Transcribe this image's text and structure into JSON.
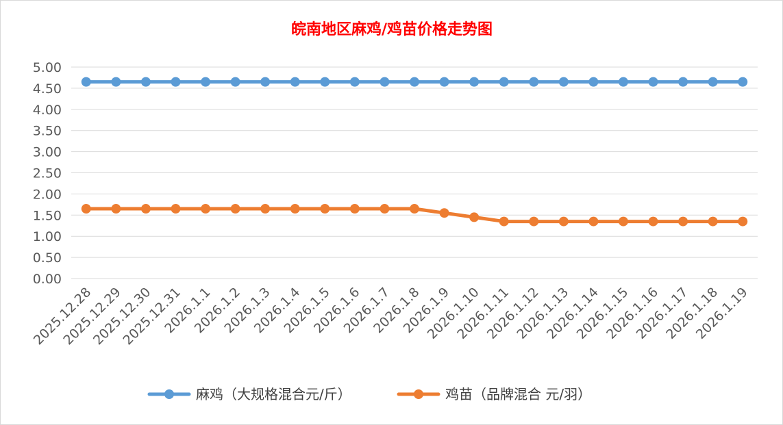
{
  "chart_data": {
    "type": "line",
    "title": "皖南地区麻鸡/鸡苗价格走势图",
    "categories": [
      "2025.12.28",
      "2025.12.29",
      "2025.12.30",
      "2025.12.31",
      "2026.1.1",
      "2026.1.2",
      "2026.1.3",
      "2026.1.4",
      "2026.1.5",
      "2026.1.6",
      "2026.1.7",
      "2026.1.8",
      "2026.1.9",
      "2026.1.10",
      "2026.1.11",
      "2026.1.12",
      "2026.1.13",
      "2026.1.14",
      "2026.1.15",
      "2026.1.16",
      "2026.1.17",
      "2026.1.18",
      "2026.1.19"
    ],
    "series": [
      {
        "name": "麻鸡（大规格混合元/斤）",
        "color": "#5b9bd5",
        "values": [
          4.65,
          4.65,
          4.65,
          4.65,
          4.65,
          4.65,
          4.65,
          4.65,
          4.65,
          4.65,
          4.65,
          4.65,
          4.65,
          4.65,
          4.65,
          4.65,
          4.65,
          4.65,
          4.65,
          4.65,
          4.65,
          4.65,
          4.65
        ]
      },
      {
        "name": "鸡苗（品牌混合 元/羽）",
        "color": "#ed7d31",
        "values": [
          1.65,
          1.65,
          1.65,
          1.65,
          1.65,
          1.65,
          1.65,
          1.65,
          1.65,
          1.65,
          1.65,
          1.65,
          1.55,
          1.45,
          1.35,
          1.35,
          1.35,
          1.35,
          1.35,
          1.35,
          1.35,
          1.35,
          1.35
        ]
      }
    ],
    "ylim": [
      0,
      5
    ],
    "ytick_step": 0.5,
    "y_tick_labels": [
      "0.00",
      "0.50",
      "1.00",
      "1.50",
      "2.00",
      "2.50",
      "3.00",
      "3.50",
      "4.00",
      "4.50",
      "5.00"
    ],
    "grid": true,
    "legend_position": "bottom",
    "title_color": "#ff0000"
  }
}
